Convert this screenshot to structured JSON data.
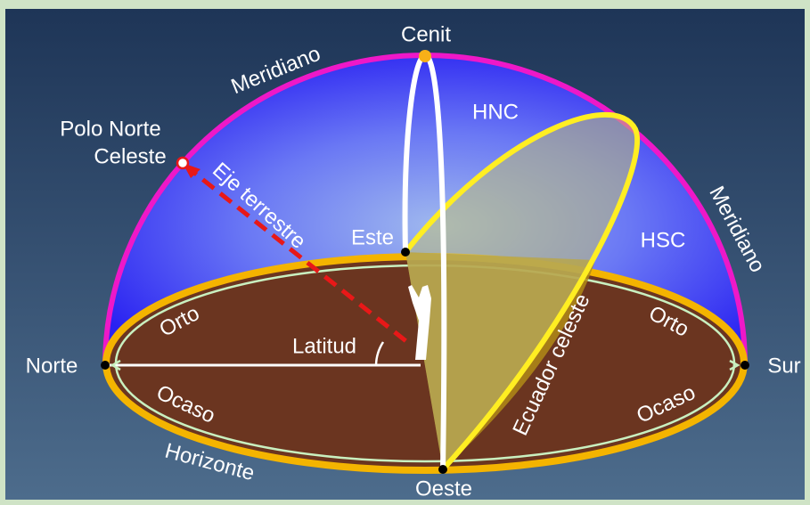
{
  "labels": [
    "Cenit",
    "Meridiano",
    "Polo Norte",
    "Celeste",
    "Eje terrestre",
    "HNC",
    "HSC",
    "Este",
    "Meridiano",
    "Orto",
    "Orto",
    "Latitud",
    "Norte",
    "Sur",
    "Ocaso",
    "Ocaso",
    "Ecuador celeste",
    "Horizonte",
    "Oeste"
  ]
}
